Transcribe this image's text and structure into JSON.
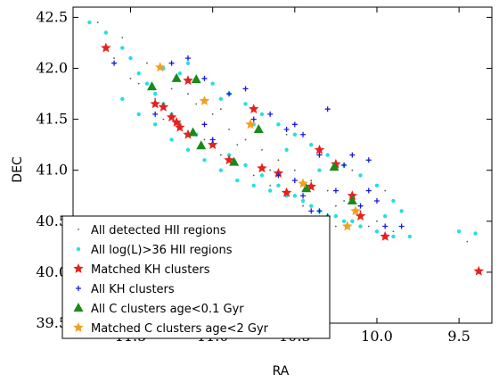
{
  "chart_data": {
    "type": "scatter",
    "title": "",
    "xlabel": "RA",
    "ylabel": "DEC",
    "xlim": [
      11.85,
      9.3
    ],
    "ylim": [
      39.5,
      42.6
    ],
    "x_axis_inverted": true,
    "xticks": [
      {
        "value": 11.5,
        "label": "11.5"
      },
      {
        "value": 11.0,
        "label": "11.0"
      },
      {
        "value": 10.5,
        "label": "10.5"
      },
      {
        "value": 10.0,
        "label": "10.0"
      },
      {
        "value": 9.5,
        "label": "9.5"
      }
    ],
    "yticks": [
      {
        "value": 39.5,
        "label": "39.5"
      },
      {
        "value": 40.0,
        "label": "40.0"
      },
      {
        "value": 40.5,
        "label": "40.5"
      },
      {
        "value": 41.0,
        "label": "41.0"
      },
      {
        "value": 41.5,
        "label": "41.5"
      },
      {
        "value": 42.0,
        "label": "42.0"
      },
      {
        "value": 42.5,
        "label": "42.5"
      }
    ],
    "grid": false,
    "legend_position": "lower-left",
    "series": [
      {
        "name": "All detected HII regions",
        "marker": "dot",
        "color": "#555555",
        "points": [
          [
            11.7,
            42.45
          ],
          [
            11.55,
            42.3
          ],
          [
            11.4,
            42.05
          ],
          [
            11.25,
            41.8
          ],
          [
            11.1,
            41.65
          ],
          [
            11.0,
            41.55
          ],
          [
            10.9,
            41.4
          ],
          [
            10.8,
            41.3
          ],
          [
            10.7,
            41.2
          ],
          [
            10.6,
            41.1
          ],
          [
            10.5,
            41.0
          ],
          [
            10.4,
            40.9
          ],
          [
            10.3,
            40.8
          ],
          [
            10.2,
            40.7
          ],
          [
            10.1,
            40.6
          ],
          [
            10.0,
            40.5
          ],
          [
            9.9,
            40.4
          ],
          [
            11.3,
            41.5
          ],
          [
            11.2,
            41.4
          ],
          [
            11.05,
            41.3
          ],
          [
            10.95,
            41.15
          ],
          [
            10.85,
            41.05
          ],
          [
            10.75,
            40.95
          ],
          [
            10.65,
            40.85
          ],
          [
            10.55,
            40.75
          ],
          [
            10.45,
            40.65
          ],
          [
            10.35,
            40.55
          ],
          [
            10.25,
            40.45
          ],
          [
            11.5,
            41.9
          ],
          [
            11.35,
            41.7
          ],
          [
            11.15,
            41.75
          ],
          [
            10.95,
            41.6
          ],
          [
            10.75,
            41.5
          ],
          [
            10.55,
            41.35
          ],
          [
            10.35,
            41.2
          ],
          [
            10.15,
            41.0
          ],
          [
            9.95,
            40.8
          ],
          [
            11.6,
            42.1
          ],
          [
            11.45,
            41.85
          ],
          [
            10.85,
            41.25
          ],
          [
            10.65,
            41.0
          ],
          [
            10.45,
            40.85
          ],
          [
            10.25,
            40.65
          ],
          [
            10.05,
            40.45
          ],
          [
            9.8,
            40.35
          ],
          [
            9.45,
            40.3
          ]
        ]
      },
      {
        "name": "All log(L)>36 HII regions",
        "marker": "cyan-dot",
        "color": "#22e0e0",
        "points": [
          [
            11.75,
            42.45
          ],
          [
            11.65,
            42.35
          ],
          [
            11.55,
            42.2
          ],
          [
            11.5,
            42.1
          ],
          [
            11.45,
            41.95
          ],
          [
            11.4,
            41.85
          ],
          [
            11.35,
            41.75
          ],
          [
            11.3,
            41.65
          ],
          [
            11.25,
            41.55
          ],
          [
            11.2,
            41.45
          ],
          [
            11.1,
            41.35
          ],
          [
            11.0,
            41.25
          ],
          [
            10.9,
            41.15
          ],
          [
            10.8,
            41.05
          ],
          [
            10.7,
            40.95
          ],
          [
            10.6,
            40.85
          ],
          [
            10.5,
            40.75
          ],
          [
            10.4,
            40.65
          ],
          [
            10.3,
            40.55
          ],
          [
            10.2,
            40.5
          ],
          [
            10.1,
            40.45
          ],
          [
            10.0,
            40.4
          ],
          [
            9.9,
            40.35
          ],
          [
            9.8,
            40.35
          ],
          [
            9.5,
            40.4
          ],
          [
            9.4,
            40.38
          ],
          [
            11.3,
            42.0
          ],
          [
            11.2,
            41.95
          ],
          [
            11.1,
            41.9
          ],
          [
            11.0,
            41.85
          ],
          [
            10.9,
            41.75
          ],
          [
            10.8,
            41.65
          ],
          [
            10.7,
            41.55
          ],
          [
            10.6,
            41.45
          ],
          [
            10.5,
            41.35
          ],
          [
            10.4,
            41.25
          ],
          [
            10.3,
            41.15
          ],
          [
            10.2,
            41.05
          ],
          [
            10.1,
            40.95
          ],
          [
            10.0,
            40.85
          ],
          [
            9.9,
            40.7
          ],
          [
            9.85,
            40.6
          ],
          [
            11.55,
            41.7
          ],
          [
            11.45,
            41.55
          ],
          [
            11.35,
            41.45
          ],
          [
            11.25,
            41.3
          ],
          [
            11.15,
            41.2
          ],
          [
            11.05,
            41.1
          ],
          [
            10.95,
            41.0
          ],
          [
            10.85,
            40.9
          ],
          [
            10.75,
            40.85
          ],
          [
            10.65,
            40.8
          ],
          [
            10.55,
            40.75
          ],
          [
            10.45,
            40.7
          ],
          [
            10.35,
            40.6
          ],
          [
            10.25,
            40.55
          ],
          [
            10.15,
            40.5
          ],
          [
            11.15,
            42.05
          ],
          [
            10.95,
            41.7
          ],
          [
            10.75,
            41.45
          ],
          [
            10.55,
            41.2
          ],
          [
            10.35,
            41.0
          ],
          [
            10.15,
            40.75
          ],
          [
            9.95,
            40.55
          ]
        ]
      },
      {
        "name": "Matched KH clusters",
        "marker": "red-star",
        "color": "#e8201c",
        "points": [
          [
            11.65,
            42.2
          ],
          [
            11.15,
            41.88
          ],
          [
            11.35,
            41.65
          ],
          [
            11.3,
            41.62
          ],
          [
            11.25,
            41.52
          ],
          [
            11.22,
            41.47
          ],
          [
            11.2,
            41.42
          ],
          [
            11.15,
            41.35
          ],
          [
            11.0,
            41.25
          ],
          [
            10.9,
            41.1
          ],
          [
            10.75,
            41.6
          ],
          [
            10.7,
            41.02
          ],
          [
            10.6,
            40.97
          ],
          [
            10.55,
            40.78
          ],
          [
            10.4,
            40.84
          ],
          [
            10.35,
            41.2
          ],
          [
            10.25,
            41.06
          ],
          [
            10.15,
            40.75
          ],
          [
            10.1,
            40.55
          ],
          [
            9.95,
            40.35
          ],
          [
            9.38,
            40.01
          ]
        ]
      },
      {
        "name": "All KH clusters",
        "marker": "blue-plus",
        "color": "#1a1ae0",
        "points": [
          [
            11.6,
            42.05
          ],
          [
            11.25,
            42.05
          ],
          [
            11.15,
            42.1
          ],
          [
            11.05,
            41.9
          ],
          [
            11.35,
            41.55
          ],
          [
            11.05,
            41.45
          ],
          [
            11.0,
            41.3
          ],
          [
            10.9,
            41.75
          ],
          [
            10.8,
            41.8
          ],
          [
            10.75,
            41.5
          ],
          [
            10.65,
            41.55
          ],
          [
            10.55,
            41.4
          ],
          [
            10.5,
            41.45
          ],
          [
            10.45,
            41.35
          ],
          [
            10.35,
            41.15
          ],
          [
            10.3,
            41.6
          ],
          [
            10.2,
            41.05
          ],
          [
            10.15,
            41.15
          ],
          [
            10.05,
            41.1
          ],
          [
            10.0,
            40.7
          ],
          [
            10.1,
            40.65
          ],
          [
            9.95,
            40.45
          ],
          [
            10.5,
            40.9
          ],
          [
            10.45,
            40.75
          ],
          [
            10.4,
            40.6
          ],
          [
            10.35,
            40.6
          ],
          [
            10.3,
            40.55
          ],
          [
            10.25,
            40.8
          ],
          [
            10.6,
            40.95
          ],
          [
            10.4,
            40.2
          ],
          [
            9.85,
            40.45
          ],
          [
            10.05,
            40.8
          ]
        ]
      },
      {
        "name": "All C clusters age<0.1 Gyr",
        "marker": "green-triangle",
        "color": "#1a8a1a",
        "points": [
          [
            11.37,
            41.82
          ],
          [
            11.22,
            41.9
          ],
          [
            11.1,
            41.89
          ],
          [
            11.12,
            41.37
          ],
          [
            11.07,
            41.24
          ],
          [
            10.87,
            41.08
          ],
          [
            10.72,
            41.4
          ],
          [
            10.43,
            40.82
          ],
          [
            10.26,
            41.03
          ],
          [
            10.15,
            40.7
          ]
        ]
      },
      {
        "name": "Matched C clusters age<2 Gyr",
        "marker": "orange-star",
        "color": "#f0a020",
        "points": [
          [
            11.32,
            42.01
          ],
          [
            11.05,
            41.68
          ],
          [
            10.77,
            41.45
          ],
          [
            10.45,
            40.87
          ],
          [
            10.18,
            40.45
          ],
          [
            10.13,
            40.6
          ]
        ]
      }
    ]
  }
}
